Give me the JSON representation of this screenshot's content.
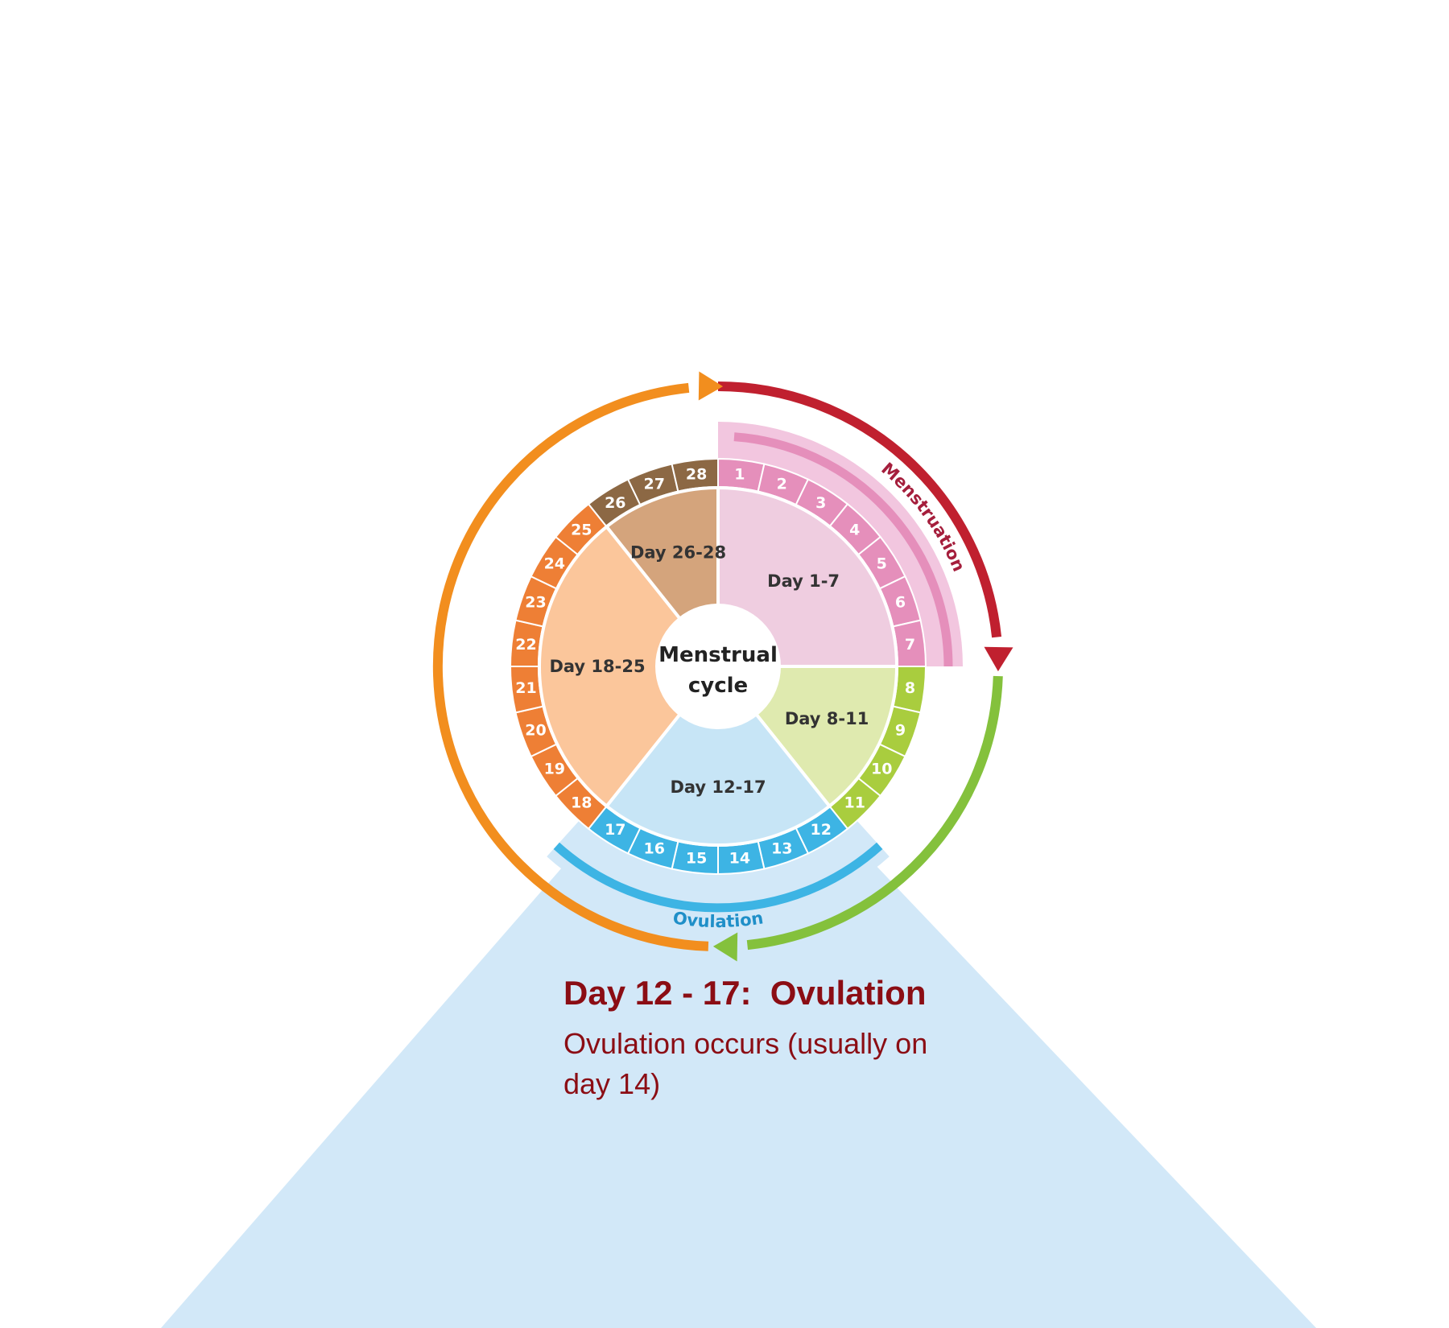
{
  "center_label": [
    "Menstrual",
    "cycle"
  ],
  "phases": [
    {
      "label": "Day 1-7",
      "days": [
        1,
        7
      ],
      "fill": "#efcde0",
      "ring": "#e58fbb"
    },
    {
      "label": "Day 8-11",
      "days": [
        8,
        11
      ],
      "fill": "#dfeaaf",
      "ring": "#a9cd3e"
    },
    {
      "label": "Day 12-17",
      "days": [
        12,
        17
      ],
      "fill": "#c7e5f6",
      "ring": "#3db4e4"
    },
    {
      "label": "Day 18-25",
      "days": [
        18,
        25
      ],
      "fill": "#fbc69b",
      "ring": "#ee7f35"
    },
    {
      "label": "Day 26-28",
      "days": [
        26,
        28
      ],
      "fill": "#d4a47c",
      "ring": "#8c6844"
    }
  ],
  "day_numbers": [
    "1",
    "2",
    "3",
    "4",
    "5",
    "6",
    "7",
    "8",
    "9",
    "10",
    "11",
    "12",
    "13",
    "14",
    "15",
    "16",
    "17",
    "18",
    "19",
    "20",
    "21",
    "22",
    "23",
    "24",
    "25",
    "26",
    "27",
    "28"
  ],
  "bands": {
    "menstruation": {
      "label": "Menstruation",
      "color": "#e58fbb",
      "background": "#f2c6df"
    },
    "ovulation": {
      "label": "Ovulation",
      "color": "#3db4e4",
      "background": "#d2e8f8"
    }
  },
  "arrows": {
    "menstruation_color": "#c0202f",
    "follicular_color": "#84c13c",
    "luteal_color": "#f28e1e"
  },
  "info": {
    "title": "Day 12 - 17:  Ovulation",
    "text": "Ovulation occurs (usually on day 14)",
    "color": "#8b0d14",
    "panel_color": "#d2e8f8"
  }
}
